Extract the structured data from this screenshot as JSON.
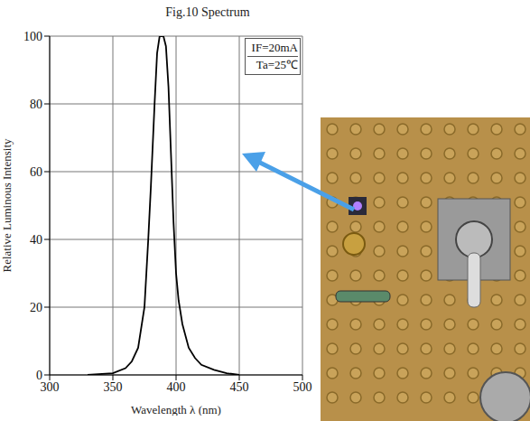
{
  "chart_data": {
    "type": "line",
    "title": "Fig.10 Spectrum",
    "x_label": "Wavelength λ (nm)",
    "y_label": "Relative Luminous Intensity",
    "annotations": [
      "IF=20mA",
      "Ta=25℃"
    ],
    "x": [
      330,
      350,
      360,
      365,
      370,
      375,
      378,
      380,
      383,
      385,
      387,
      390,
      392,
      394,
      396,
      398,
      400,
      402,
      405,
      410,
      415,
      420,
      430,
      440,
      450
    ],
    "values": [
      0,
      0.5,
      2,
      4,
      8,
      20,
      40,
      55,
      80,
      95,
      100,
      100,
      97,
      85,
      65,
      45,
      30,
      22,
      15,
      8,
      5,
      3,
      1.5,
      0.5,
      0
    ],
    "color": "#000000",
    "xlim": [
      300,
      500
    ],
    "xticks": [
      300,
      350,
      400,
      450,
      500
    ],
    "ylim": [
      0,
      100
    ],
    "yticks": [
      0,
      20,
      40,
      60,
      80,
      100
    ],
    "grid": true
  }
}
